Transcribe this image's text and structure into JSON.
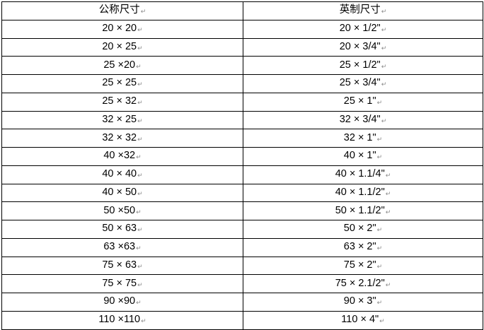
{
  "table": {
    "headers": [
      "公称尺寸",
      "英制尺寸"
    ],
    "rows": [
      [
        "20 × 20",
        "20 × 1/2\""
      ],
      [
        "20 × 25",
        "20 × 3/4\""
      ],
      [
        "25 ×20",
        "25 × 1/2\""
      ],
      [
        "25 × 25",
        "25 × 3/4\""
      ],
      [
        "25 × 32",
        "25 × 1\""
      ],
      [
        "32 × 25",
        "32 × 3/4\""
      ],
      [
        "32 × 32",
        "32 × 1\""
      ],
      [
        "40 ×32",
        "40 × 1\""
      ],
      [
        "40 × 40",
        "40 × 1.1/4\""
      ],
      [
        "40 × 50",
        "40 × 1.1/2\""
      ],
      [
        "50 ×50",
        "50 × 1.1/2\""
      ],
      [
        "50 × 63",
        "50 × 2\""
      ],
      [
        "63 ×63",
        "63 × 2\""
      ],
      [
        "75 × 63",
        "75 × 2\""
      ],
      [
        "75 × 75",
        "75 × 2.1/2\""
      ],
      [
        "90 ×90",
        "90 × 3\""
      ],
      [
        "110 ×110",
        "110 × 4\""
      ]
    ]
  }
}
